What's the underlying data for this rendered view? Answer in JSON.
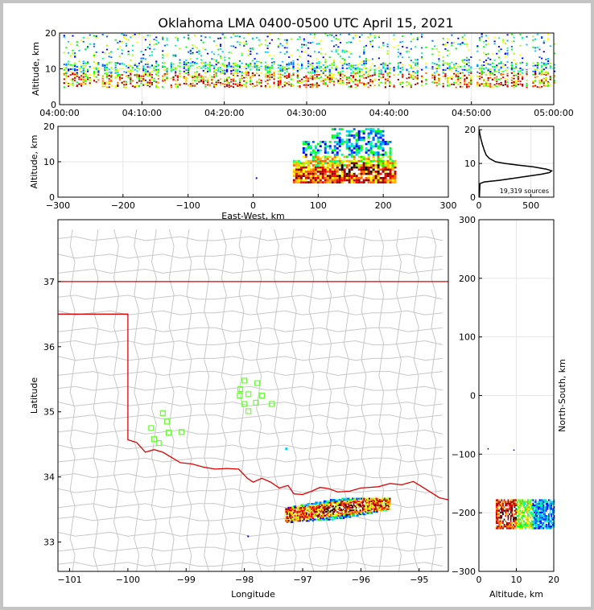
{
  "title": "Oklahoma LMA 0400-0500 UTC April 15, 2021",
  "colors": {
    "boundary": "#e00000",
    "counties": "#c8c8c8",
    "stations": "#66ff33",
    "grid": "#e6e6e6",
    "hist": "#000000"
  },
  "chart_data": [
    {
      "type": "heatmap",
      "name": "time-height",
      "ylabel": "Altitude, km",
      "ylim": [
        0,
        20
      ],
      "y_ticks": [
        "0",
        "10",
        "20"
      ],
      "x_ticks": [
        "04:00:00",
        "04:10:00",
        "04:20:00",
        "04:30:00",
        "04:40:00",
        "04:50:00",
        "05:00:00"
      ],
      "xlim_minutes": [
        0,
        60
      ],
      "altitude_core_km": [
        5,
        12
      ],
      "altitude_max_km": 20
    },
    {
      "type": "heatmap",
      "name": "east-west-altitude",
      "xlabel": "East-West, km",
      "ylabel": "Altitude, km",
      "xlim": [
        -300,
        300
      ],
      "ylim": [
        0,
        20
      ],
      "x_ticks": [
        "−300",
        "−200",
        "−100",
        "0",
        "100",
        "200",
        "300"
      ],
      "y_ticks": [
        "0",
        "10",
        "20"
      ],
      "cluster_x_km": [
        50,
        220
      ],
      "core_x_km": [
        130,
        200
      ],
      "core_altitude_km": [
        6,
        10
      ]
    },
    {
      "type": "line",
      "name": "altitude-histogram",
      "annotation": "19,319 sources",
      "xlim": [
        0,
        720
      ],
      "ylim": [
        0,
        21
      ],
      "x_ticks": [
        "0",
        "500"
      ],
      "y_ticks": [
        "0",
        "10",
        "20"
      ],
      "profile": [
        [
          5,
          0
        ],
        [
          10,
          4
        ],
        [
          50,
          4.5
        ],
        [
          200,
          5
        ],
        [
          420,
          6
        ],
        [
          600,
          6.8
        ],
        [
          680,
          7.3
        ],
        [
          700,
          7.8
        ],
        [
          650,
          8.3
        ],
        [
          520,
          9
        ],
        [
          380,
          9.5
        ],
        [
          250,
          10
        ],
        [
          160,
          10.5
        ],
        [
          100,
          11.5
        ],
        [
          70,
          12.5
        ],
        [
          50,
          14
        ],
        [
          35,
          15.5
        ],
        [
          22,
          17
        ],
        [
          14,
          18
        ],
        [
          8,
          19
        ],
        [
          4,
          20
        ]
      ]
    },
    {
      "type": "scatter",
      "name": "plan-view",
      "xlabel": "Longitude",
      "ylabel": "Latitude",
      "xlim": [
        -101.2,
        -94.5
      ],
      "ylim": [
        32.55,
        37.95
      ],
      "x_ticks": [
        "−101",
        "−100",
        "−99",
        "−98",
        "−97",
        "−96",
        "−95"
      ],
      "y_ticks": [
        "33",
        "34",
        "35",
        "36",
        "37"
      ],
      "stations": [
        [
          -99.4,
          34.98
        ],
        [
          -99.33,
          34.85
        ],
        [
          -99.6,
          34.75
        ],
        [
          -99.3,
          34.68
        ],
        [
          -99.08,
          34.69
        ],
        [
          -99.55,
          34.58
        ],
        [
          -99.47,
          34.52
        ],
        [
          -98.0,
          35.48
        ],
        [
          -97.78,
          35.44
        ],
        [
          -98.07,
          35.35
        ],
        [
          -98.08,
          35.25
        ],
        [
          -97.93,
          35.27
        ],
        [
          -97.7,
          35.25
        ],
        [
          -98.0,
          35.12
        ],
        [
          -97.8,
          35.14
        ],
        [
          -97.53,
          35.12
        ],
        [
          -97.93,
          35.01
        ]
      ],
      "flash_lon": [
        -97.3,
        -95.5
      ],
      "flash_lat": [
        33.2,
        33.7
      ]
    },
    {
      "type": "heatmap",
      "name": "altitude-north-south",
      "xlabel": "Altitude, km",
      "ylabel": "North-South, km",
      "xlim": [
        0,
        20
      ],
      "ylim": [
        -300,
        300
      ],
      "x_ticks": [
        "0",
        "10",
        "20"
      ],
      "y_ticks": [
        "−300",
        "−200",
        "−100",
        "0",
        "100",
        "200",
        "300"
      ],
      "cluster_ns_km": [
        -225,
        -175
      ],
      "core_altitude_km": [
        5,
        10
      ]
    }
  ]
}
